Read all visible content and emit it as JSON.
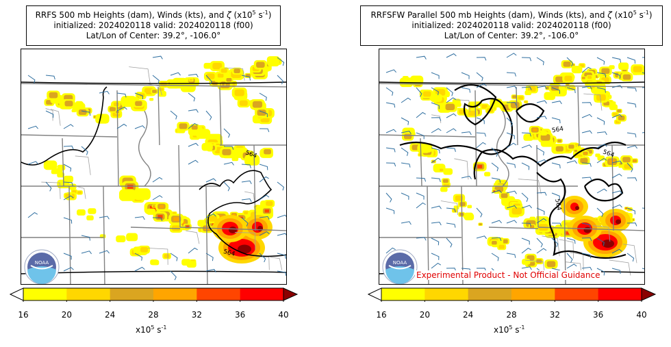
{
  "panels": [
    {
      "title_prefix": "RRFS 500 mb Heights (dam), Winds (kts), and ",
      "zeta_symbol": "ζ",
      "title_unit": " (x10",
      "title_exp": "5",
      "title_unit_end": " s",
      "title_exp2": "-1",
      "title_close": ")",
      "line2": "initialized: 2024020118 valid: 2024020118 (f00)",
      "line3": "Lat/Lon of Center: 39.2°, -106.0°",
      "contour_labels": [
        "564",
        "564"
      ],
      "logo_text": "NOAA"
    },
    {
      "title_prefix": "RRFSFW Parallel 500 mb Heights (dam), Winds (kts), and ",
      "zeta_symbol": "ζ",
      "title_unit": " (x10",
      "title_exp": "5",
      "title_unit_end": " s",
      "title_exp2": "-1",
      "title_close": ")",
      "line2": "initialized: 2024020118 valid: 2024020118 (f00)",
      "line3": "Lat/Lon of Center: 39.2°, -106.0°",
      "contour_labels": [
        "564",
        "564",
        "564"
      ],
      "logo_text": "NOAA",
      "disclaimer": "Experimental Product - Not Official Guidance"
    }
  ],
  "chart_data": {
    "type": "heatmap",
    "colorbar": {
      "ticks": [
        "16",
        "20",
        "24",
        "28",
        "32",
        "36",
        "40"
      ],
      "bounds": [
        16,
        20,
        24,
        28,
        32,
        36,
        40
      ],
      "colors": [
        "#ffff00",
        "#ffd700",
        "#daa520",
        "#ffa500",
        "#ff4500",
        "#ff0000",
        "#8b0000"
      ],
      "extend": "both",
      "label_base": "x10",
      "label_exp": "5",
      "label_unit": " s",
      "label_exp2": "-1"
    },
    "contour_level": "564",
    "contour_units": "dam"
  }
}
